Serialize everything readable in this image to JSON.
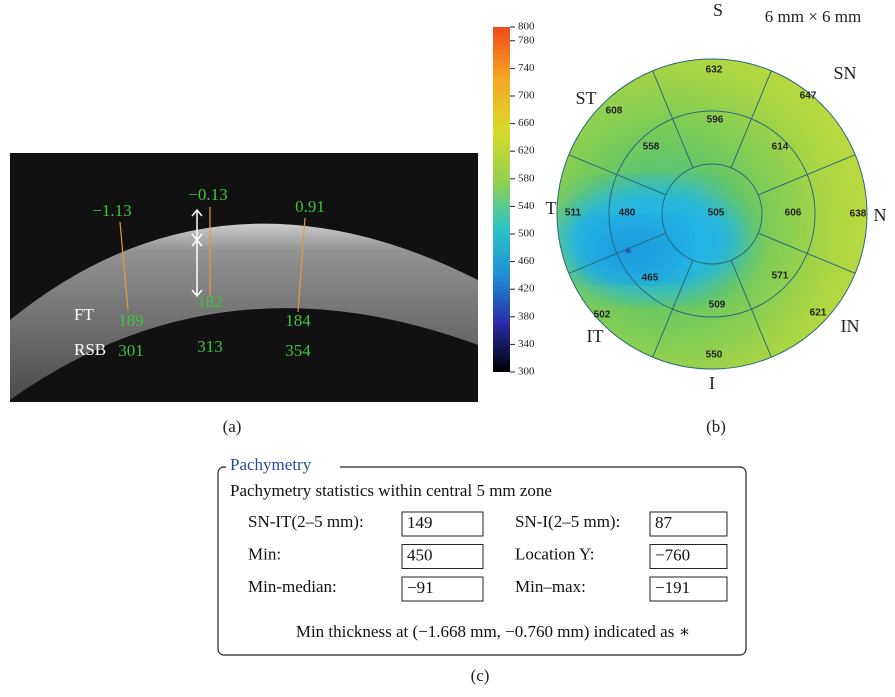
{
  "panel_a": {
    "top_labels": [
      "−1.13",
      "−0.13",
      "0.91"
    ],
    "ft_label": "FT",
    "rsb_label": "RSB",
    "ft_values": [
      189,
      182,
      184
    ],
    "rsb_values": [
      301,
      313,
      354
    ],
    "caption": "(a)"
  },
  "panel_b": {
    "size_label": "6 mm × 6 mm",
    "colorbar": {
      "lim": [
        300,
        800
      ],
      "ticks": [
        800,
        780,
        740,
        700,
        660,
        620,
        580,
        540,
        500,
        460,
        420,
        380,
        340,
        300
      ]
    },
    "directions": [
      "S",
      "SN",
      "N",
      "IN",
      "I",
      "IT",
      "T",
      "ST"
    ],
    "outer_values": [
      632,
      647,
      638,
      621,
      550,
      502,
      511,
      608
    ],
    "middle_values": [
      596,
      614,
      606,
      571,
      509,
      465,
      480,
      558
    ],
    "center_value": 505,
    "caption": "(b)"
  },
  "panel_c": {
    "legend": "Pachymetry",
    "heading": "Pachymetry statistics within central 5 mm zone",
    "fields": [
      {
        "label": "SN-IT(2–5 mm):",
        "value": "149"
      },
      {
        "label": "SN-I(2–5 mm):",
        "value": "87"
      },
      {
        "label": "Min:",
        "value": "450"
      },
      {
        "label": "Location Y:",
        "value": "−760"
      },
      {
        "label": "Min-median:",
        "value": "−91"
      },
      {
        "label": "Min–max:",
        "value": "−191"
      }
    ],
    "note": "Min thickness at (−1.668 mm, −0.760 mm) indicated as ∗",
    "caption": "(c)"
  }
}
